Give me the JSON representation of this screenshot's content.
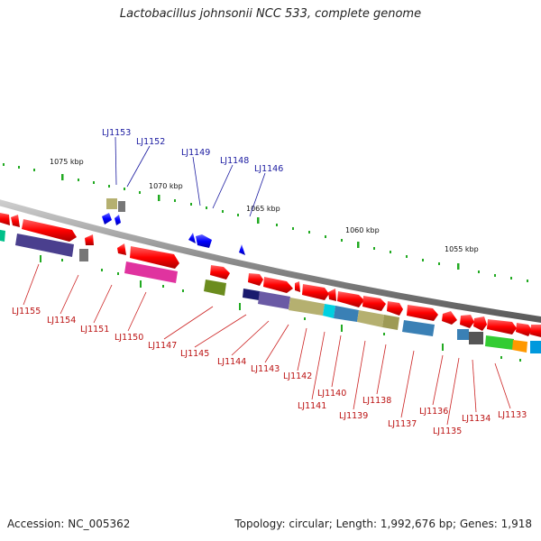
{
  "title": "Lactobacillus johnsonii NCC 533, complete genome",
  "footer": {
    "accession": "Accession: NC_005362",
    "summary": "Topology: circular; Length: 1,992,676 bp; Genes: 1,918"
  },
  "ruler": [
    "1075 kbp",
    "1070 kbp",
    "1065 kbp",
    "1060 kbp",
    "1055 kbp"
  ],
  "labels_top": [
    "LJ1153",
    "LJ1152",
    "LJ1149",
    "LJ1148",
    "LJ1146"
  ],
  "labels_bottom": [
    "LJ1155",
    "LJ1154",
    "LJ1151",
    "LJ1150",
    "LJ1147",
    "LJ1145",
    "LJ1144",
    "LJ1143",
    "LJ1142",
    "LJ1141",
    "LJ1140",
    "LJ1139",
    "LJ1138",
    "LJ1137",
    "LJ1136",
    "LJ1135",
    "LJ1134",
    "LJ1133"
  ],
  "colors": {
    "gene_forward": "#ff0000",
    "gene_reverse": "#0000ff",
    "label_forward": "#bb1111",
    "label_reverse": "#1a1aa0",
    "backbone": "#888888",
    "tick": "#22aa22"
  }
}
